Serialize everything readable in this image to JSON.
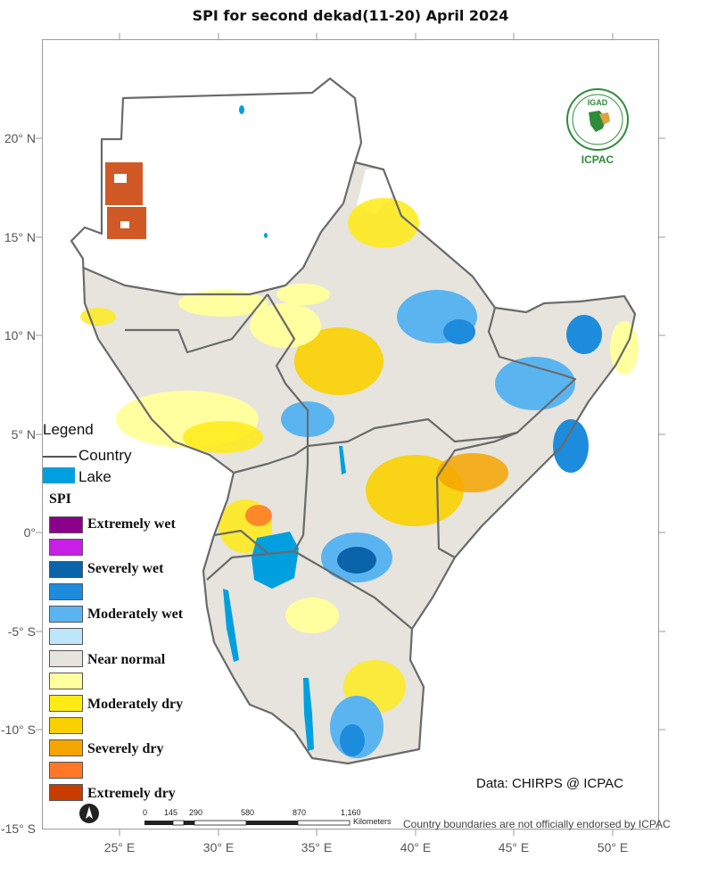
{
  "title": "SPI  for second dekad(11-20) April 2024",
  "axes": {
    "y_ticks": [
      "20° N",
      "15° N",
      "10° N",
      "5° N",
      "0°",
      "-5° S",
      "-10° S",
      "-15° S"
    ],
    "x_ticks": [
      "25° E",
      "30° E",
      "35° E",
      "40° E",
      "45° E",
      "50° E"
    ]
  },
  "legend": {
    "title": "Legend",
    "country_label": "Country",
    "lake_label": "Lake",
    "lake_color": "#00a0e0",
    "spi_title": "SPI",
    "classes": [
      {
        "label": "Extremely wet",
        "color": "#8b008b"
      },
      {
        "label": "",
        "color": "#c81ee6"
      },
      {
        "label": "Severely wet",
        "color": "#0a64aa"
      },
      {
        "label": "",
        "color": "#1e8cdc"
      },
      {
        "label": "Moderately wet",
        "color": "#5ab4f0"
      },
      {
        "label": "",
        "color": "#bee6fa"
      },
      {
        "label": "Near normal",
        "color": "#e6e4dc"
      },
      {
        "label": "",
        "color": "#ffffa0"
      },
      {
        "label": "Moderately dry",
        "color": "#ffeb14"
      },
      {
        "label": "",
        "color": "#fad000"
      },
      {
        "label": "Severely dry",
        "color": "#f5a500"
      },
      {
        "label": "",
        "color": "#ff7828"
      },
      {
        "label": "Extremely dry",
        "color": "#c83c00"
      }
    ]
  },
  "scale_bar": {
    "ticks": [
      "0",
      "145",
      "290",
      "580",
      "870",
      "1,160"
    ],
    "unit": "Kilometers"
  },
  "credit": "Data: CHIRPS @ ICPAC",
  "disclaimer": "Country boundaries are not officially endorsed by ICPAC",
  "logo": {
    "top_text": "IGAD",
    "bottom_text": "ICPAC",
    "color": "#2e8b3a"
  },
  "north_arrow": "north-arrow-icon"
}
